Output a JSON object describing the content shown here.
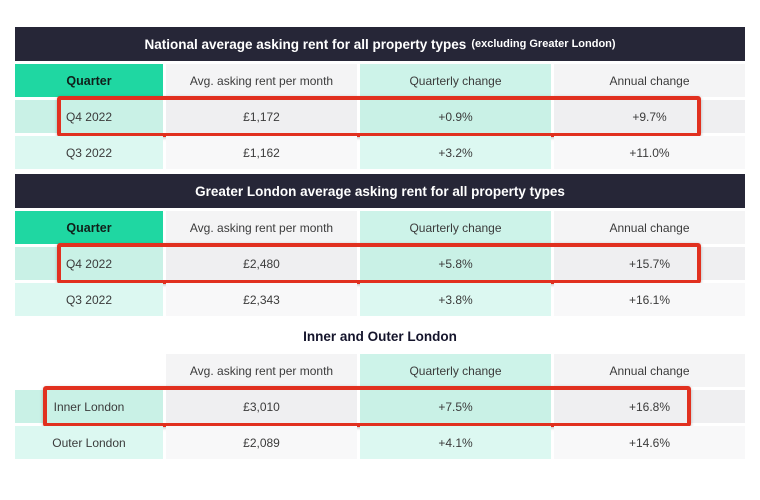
{
  "colors": {
    "page_bg": "#ffffff",
    "title_bar_bg": "#262637",
    "title_bar_text": "#ffffff",
    "quarter_header_bg": "#1fd7a2",
    "teal_header_cell": "#cdf3e9",
    "light_header_cell": "#f4f4f5",
    "teal_cell": "#c9f1e6",
    "gray_cell": "#efeff1",
    "teal_cell_light": "#dcf8f1",
    "gray_cell_light": "#f8f8f9",
    "body_text": "#3b3b3b",
    "highlight_red": "#e1301f"
  },
  "tables": [
    {
      "title_main": "National average asking rent for all property types",
      "title_suffix": "(excluding Greater London)",
      "columns": [
        "Quarter",
        "Avg. asking rent per month",
        "Quarterly change",
        "Annual change"
      ],
      "rows": [
        {
          "label": "Q4 2022",
          "rent": "£1,172",
          "quarterly": "+0.9%",
          "annual": "+9.7%",
          "highlighted": true
        },
        {
          "label": "Q3 2022",
          "rent": "£1,162",
          "quarterly": "+3.2%",
          "annual": "+11.0%",
          "highlighted": false
        }
      ]
    },
    {
      "title_main": "Greater London average asking rent for all property types",
      "title_suffix": "",
      "columns": [
        "Quarter",
        "Avg. asking rent per month",
        "Quarterly change",
        "Annual change"
      ],
      "rows": [
        {
          "label": "Q4 2022",
          "rent": "£2,480",
          "quarterly": "+5.8%",
          "annual": "+15.7%",
          "highlighted": true
        },
        {
          "label": "Q3 2022",
          "rent": "£2,343",
          "quarterly": "+3.8%",
          "annual": "+16.1%",
          "highlighted": false
        }
      ]
    },
    {
      "title_main": "Inner and Outer London",
      "title_suffix": "",
      "columns": [
        "",
        "Avg. asking rent per month",
        "Quarterly change",
        "Annual change"
      ],
      "rows": [
        {
          "label": "Inner London",
          "rent": "£3,010",
          "quarterly": "+7.5%",
          "annual": "+16.8%",
          "highlighted": true
        },
        {
          "label": "Outer London",
          "rent": "£2,089",
          "quarterly": "+4.1%",
          "annual": "+14.6%",
          "highlighted": false
        }
      ]
    }
  ]
}
